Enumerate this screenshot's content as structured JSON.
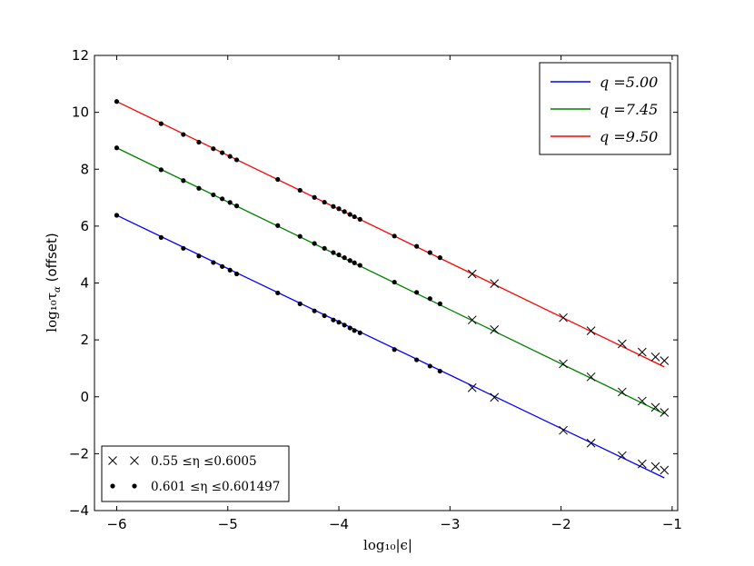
{
  "chart_data": {
    "type": "line",
    "title": "",
    "xlabel": "log₁₀|ϵ|",
    "ylabel": "log₁₀τ_α (offset)",
    "ylabel_main": "log₁₀τ",
    "ylabel_sub": "α",
    "ylabel_rest": " (offset)",
    "xlim": [
      -6.2,
      -0.95
    ],
    "ylim": [
      -4,
      12
    ],
    "xticks": [
      -6,
      -5,
      -4,
      -3,
      -2,
      -1
    ],
    "yticks": [
      -4,
      -2,
      0,
      2,
      4,
      6,
      8,
      10,
      12
    ],
    "xtick_labels": [
      "−6",
      "−5",
      "−4",
      "−3",
      "−2",
      "−1"
    ],
    "ytick_labels": [
      "−4",
      "−2",
      "0",
      "2",
      "4",
      "6",
      "8",
      "10",
      "12"
    ],
    "grid": false,
    "legend_lines_placement": "top-right",
    "legend_markers_placement": "bottom-left",
    "series": [
      {
        "name": "q =5.00",
        "color": "#0000ff",
        "fit": [
          [
            -6.0,
            6.38
          ],
          [
            -1.07,
            -2.85
          ]
        ],
        "dots_x": [
          -6.0,
          -5.6,
          -5.4,
          -5.26,
          -5.13,
          -5.05,
          -4.98,
          -4.92,
          -4.55,
          -4.35,
          -4.22,
          -4.13,
          -4.05,
          -4.0,
          -3.95,
          -3.9,
          -3.86,
          -3.81,
          -3.5,
          -3.3,
          -3.18,
          -3.09
        ],
        "dots_y": [
          6.38,
          5.6,
          5.22,
          4.95,
          4.72,
          4.58,
          4.45,
          4.32,
          3.65,
          3.27,
          3.02,
          2.85,
          2.7,
          2.62,
          2.52,
          2.42,
          2.33,
          2.25,
          1.66,
          1.3,
          1.08,
          0.9
        ],
        "cross_x": [
          -2.8,
          -2.6,
          -1.98,
          -1.73,
          -1.45,
          -1.27,
          -1.15,
          -1.07
        ],
        "cross_y": [
          0.32,
          -0.02,
          -1.18,
          -1.63,
          -2.07,
          -2.36,
          -2.45,
          -2.58
        ]
      },
      {
        "name": "q =7.45",
        "color": "#008000",
        "fit": [
          [
            -6.0,
            8.75
          ],
          [
            -1.07,
            -0.6
          ]
        ],
        "dots_x": [
          -6.0,
          -5.6,
          -5.4,
          -5.26,
          -5.13,
          -5.05,
          -4.98,
          -4.92,
          -4.55,
          -4.35,
          -4.22,
          -4.13,
          -4.05,
          -4.0,
          -3.95,
          -3.9,
          -3.86,
          -3.81,
          -3.5,
          -3.3,
          -3.18,
          -3.09
        ],
        "dots_y": [
          8.75,
          7.98,
          7.6,
          7.33,
          7.1,
          6.96,
          6.83,
          6.71,
          6.02,
          5.64,
          5.39,
          5.22,
          5.07,
          4.99,
          4.89,
          4.79,
          4.71,
          4.62,
          4.03,
          3.67,
          3.45,
          3.27
        ],
        "cross_x": [
          -2.8,
          -2.6,
          -1.98,
          -1.73,
          -1.45,
          -1.27,
          -1.15,
          -1.07
        ],
        "cross_y": [
          2.7,
          2.36,
          1.16,
          0.7,
          0.17,
          -0.15,
          -0.37,
          -0.55
        ]
      },
      {
        "name": "q =9.50",
        "color": "#ff0000",
        "fit": [
          [
            -6.0,
            10.38
          ],
          [
            -1.07,
            1.05
          ]
        ],
        "dots_x": [
          -6.0,
          -5.6,
          -5.4,
          -5.26,
          -5.13,
          -5.05,
          -4.98,
          -4.92,
          -4.55,
          -4.35,
          -4.22,
          -4.13,
          -4.05,
          -4.0,
          -3.95,
          -3.9,
          -3.86,
          -3.81,
          -3.5,
          -3.3,
          -3.18,
          -3.09
        ],
        "dots_y": [
          10.38,
          9.6,
          9.22,
          8.95,
          8.72,
          8.58,
          8.45,
          8.33,
          7.64,
          7.26,
          7.01,
          6.84,
          6.69,
          6.61,
          6.51,
          6.41,
          6.33,
          6.24,
          5.65,
          5.29,
          5.07,
          4.89
        ],
        "cross_x": [
          -2.8,
          -2.6,
          -1.98,
          -1.73,
          -1.45,
          -1.27,
          -1.15,
          -1.07
        ],
        "cross_y": [
          4.32,
          3.98,
          2.78,
          2.32,
          1.86,
          1.57,
          1.4,
          1.27
        ]
      }
    ],
    "legend_lines": [
      {
        "label": "q =5.00",
        "color": "#0000ff"
      },
      {
        "label": "q =7.45",
        "color": "#008000"
      },
      {
        "label": "q =9.50",
        "color": "#ff0000"
      }
    ],
    "legend_markers": [
      {
        "marker": "cross",
        "label": "0.55 ≤η ≤0.6005"
      },
      {
        "marker": "dot",
        "label": "0.601 ≤η ≤0.601497"
      }
    ]
  }
}
